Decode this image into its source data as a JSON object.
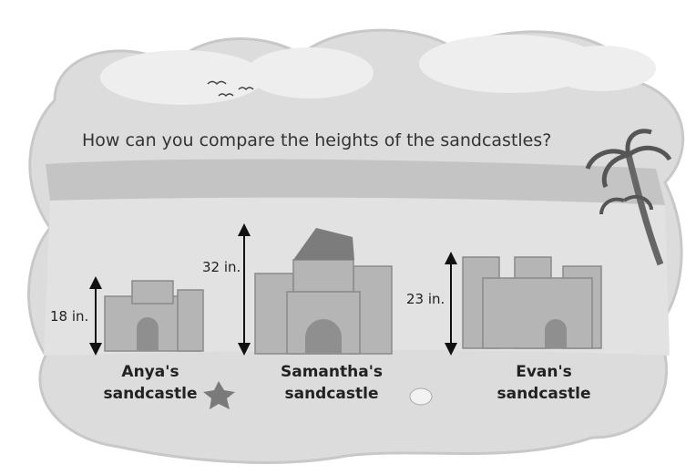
{
  "question": "How can you compare the heights of the sandcastles?",
  "castles": [
    {
      "name_lines": [
        "Anya's",
        "sandcastle"
      ],
      "height": "18 in."
    },
    {
      "name_lines": [
        "Samantha's",
        "sandcastle"
      ],
      "height": "32 in."
    },
    {
      "name_lines": [
        "Evan's",
        "sandcastle"
      ],
      "height": "23 in."
    }
  ]
}
